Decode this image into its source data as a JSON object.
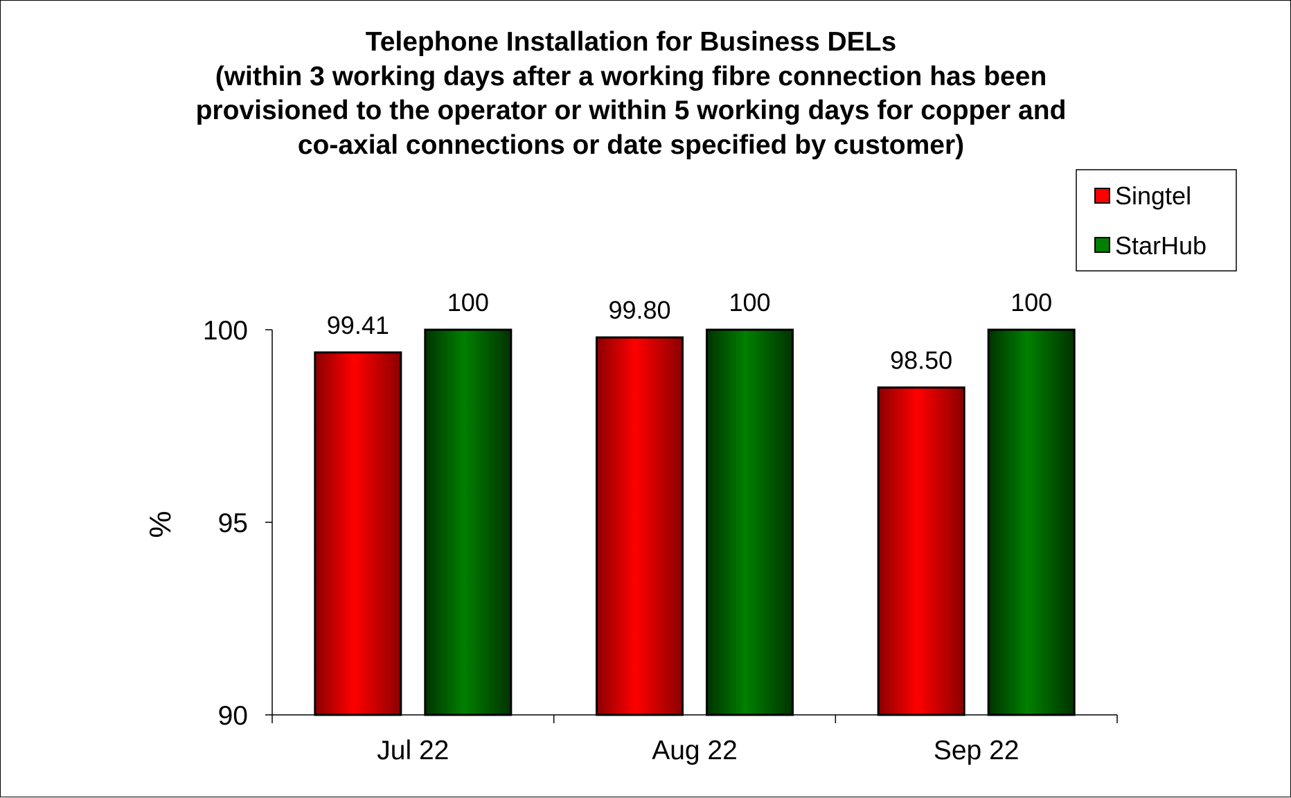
{
  "chart_data": {
    "type": "bar",
    "title_lines": [
      "Telephone Installation for Business DELs",
      "(within 3 working days after a working fibre connection has been",
      "provisioned to the operator or within 5 working days for copper and",
      "co-axial connections or date specified by customer)"
    ],
    "categories": [
      "Jul 22",
      "Aug 22",
      "Sep 22"
    ],
    "series": [
      {
        "name": "Singtel",
        "values": [
          99.41,
          99.8,
          98.5
        ],
        "labels": [
          "99.41",
          "99.80",
          "98.50"
        ],
        "color": "#ff0000",
        "color_dark": "#8b0000"
      },
      {
        "name": "StarHub",
        "values": [
          100,
          100,
          100
        ],
        "labels": [
          "100",
          "100",
          "100"
        ],
        "color": "#008000",
        "color_dark": "#003300"
      }
    ],
    "ylabel": "%",
    "xlabel": "",
    "ylim": [
      90,
      100
    ],
    "yticks": [
      "90",
      "95",
      "100"
    ],
    "grid": false,
    "legend_position": "top-right"
  }
}
